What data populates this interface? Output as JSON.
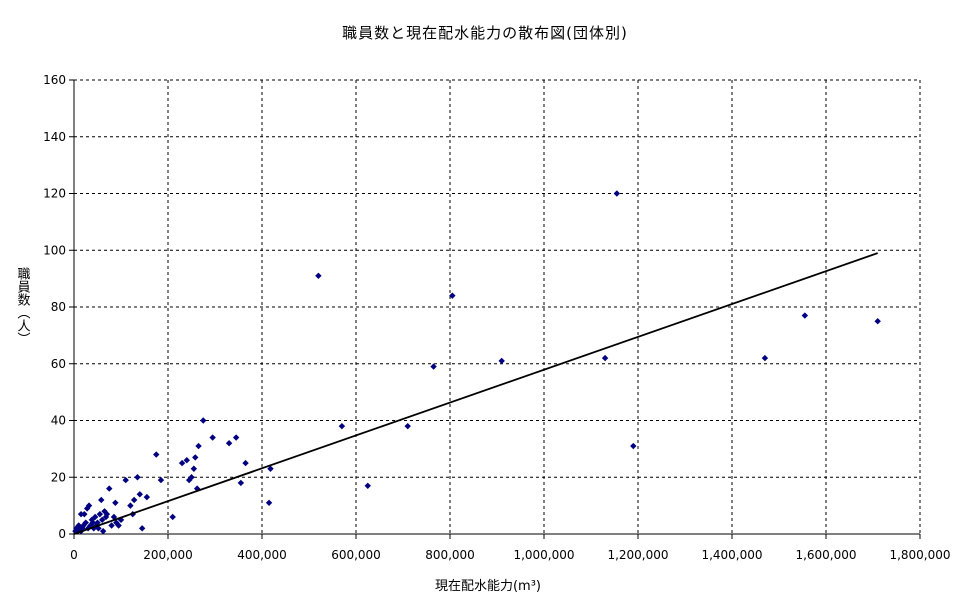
{
  "title": "職員数と現在配水能力の散布図(団体別)",
  "chart_data": {
    "type": "scatter",
    "title": "職員数と現在配水能力の散布図(団体別)",
    "xlabel": "現在配水能力(m³)",
    "ylabel": "職員数（人）",
    "xlim": [
      0,
      1800000
    ],
    "ylim": [
      0,
      160
    ],
    "x_ticks": [
      "0",
      "200,000",
      "400,000",
      "600,000",
      "800,000",
      "1,000,000",
      "1,200,000",
      "1,400,000",
      "1,600,000",
      "1,800,000"
    ],
    "y_ticks": [
      "0",
      "20",
      "40",
      "60",
      "80",
      "100",
      "120",
      "140",
      "160"
    ],
    "grid": true,
    "marker_color": "#000080",
    "trendline": {
      "x": [
        0,
        1710000
      ],
      "y": [
        0,
        99
      ],
      "color": "#000000"
    },
    "points": [
      [
        3000,
        1
      ],
      [
        5000,
        2
      ],
      [
        8000,
        1
      ],
      [
        10000,
        3
      ],
      [
        12000,
        2
      ],
      [
        15000,
        1
      ],
      [
        15000,
        7
      ],
      [
        18000,
        2
      ],
      [
        20000,
        3
      ],
      [
        22000,
        7
      ],
      [
        25000,
        4
      ],
      [
        28000,
        9
      ],
      [
        30000,
        2
      ],
      [
        32000,
        10
      ],
      [
        35000,
        3
      ],
      [
        38000,
        5
      ],
      [
        40000,
        4
      ],
      [
        42000,
        2
      ],
      [
        45000,
        6
      ],
      [
        48000,
        3
      ],
      [
        50000,
        4
      ],
      [
        52000,
        2
      ],
      [
        55000,
        7
      ],
      [
        58000,
        12
      ],
      [
        60000,
        5
      ],
      [
        62000,
        1
      ],
      [
        65000,
        8
      ],
      [
        68000,
        6
      ],
      [
        70000,
        7
      ],
      [
        75000,
        16
      ],
      [
        80000,
        3
      ],
      [
        85000,
        6
      ],
      [
        88000,
        11
      ],
      [
        90000,
        4
      ],
      [
        95000,
        3
      ],
      [
        100000,
        5
      ],
      [
        110000,
        19
      ],
      [
        120000,
        10
      ],
      [
        125000,
        7
      ],
      [
        128000,
        12
      ],
      [
        135000,
        20
      ],
      [
        140000,
        14
      ],
      [
        145000,
        2
      ],
      [
        155000,
        13
      ],
      [
        175000,
        28
      ],
      [
        185000,
        19
      ],
      [
        210000,
        6
      ],
      [
        230000,
        25
      ],
      [
        240000,
        26
      ],
      [
        245000,
        19
      ],
      [
        250000,
        20
      ],
      [
        255000,
        23
      ],
      [
        258000,
        27
      ],
      [
        262000,
        16
      ],
      [
        265000,
        31
      ],
      [
        275000,
        40
      ],
      [
        295000,
        34
      ],
      [
        330000,
        32
      ],
      [
        345000,
        34
      ],
      [
        355000,
        18
      ],
      [
        365000,
        25
      ],
      [
        415000,
        11
      ],
      [
        418000,
        23
      ],
      [
        520000,
        91
      ],
      [
        570000,
        38
      ],
      [
        625000,
        17
      ],
      [
        710000,
        38
      ],
      [
        765000,
        59
      ],
      [
        805000,
        84
      ],
      [
        910000,
        61
      ],
      [
        1130000,
        62
      ],
      [
        1155000,
        120
      ],
      [
        1190000,
        31
      ],
      [
        1470000,
        62
      ],
      [
        1555000,
        77
      ],
      [
        1710000,
        75
      ]
    ]
  }
}
